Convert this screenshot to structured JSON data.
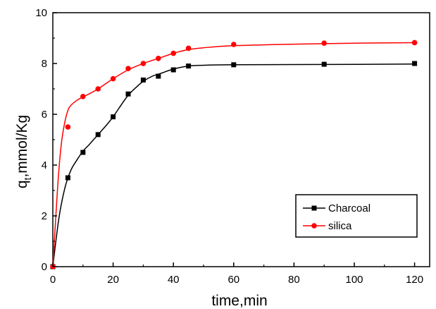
{
  "chart_data": {
    "type": "line",
    "xlabel": "time,min",
    "ylabel": "qt,mmol/Kg",
    "ylabel_main": "q",
    "ylabel_sub": "t",
    "ylabel_rest": ",mmol/Kg",
    "xlim": [
      0,
      125
    ],
    "ylim": [
      0,
      10
    ],
    "x_ticks": [
      "0",
      "20",
      "40",
      "60",
      "80",
      "100",
      "120"
    ],
    "y_ticks": [
      "0",
      "2",
      "4",
      "6",
      "8",
      "10"
    ],
    "grid": false,
    "legend_position": "bottom-right",
    "series": [
      {
        "name": "Charcoal",
        "color": "#000000",
        "marker": "square",
        "x": [
          0,
          5,
          10,
          15,
          20,
          25,
          30,
          35,
          40,
          45,
          60,
          90,
          120
        ],
        "values": [
          0,
          3.5,
          4.5,
          5.2,
          5.9,
          6.8,
          7.35,
          7.5,
          7.75,
          7.9,
          7.95,
          7.97,
          8.0
        ],
        "fit_x": [
          0,
          2,
          4,
          6,
          8,
          10,
          12,
          15,
          18,
          20,
          22,
          25,
          28,
          30,
          33,
          36,
          40,
          45,
          50,
          60,
          90,
          120
        ],
        "fit_y": [
          0,
          1.9,
          3.1,
          3.8,
          4.2,
          4.55,
          4.8,
          5.2,
          5.6,
          5.9,
          6.25,
          6.75,
          7.1,
          7.3,
          7.5,
          7.62,
          7.78,
          7.9,
          7.93,
          7.95,
          7.96,
          7.98
        ]
      },
      {
        "name": "silica",
        "color": "#ff0000",
        "marker": "circle",
        "x": [
          0,
          5,
          10,
          15,
          20,
          25,
          30,
          35,
          40,
          45,
          60,
          90,
          120
        ],
        "values": [
          0,
          5.5,
          6.7,
          7.0,
          7.4,
          7.8,
          8.0,
          8.2,
          8.4,
          8.6,
          8.75,
          8.8,
          8.82
        ],
        "fit_x": [
          0,
          1,
          2,
          3,
          4,
          5,
          6,
          8,
          10,
          12,
          15,
          20,
          25,
          30,
          35,
          40,
          45,
          50,
          60,
          80,
          100,
          120
        ],
        "fit_y": [
          0,
          2.0,
          3.8,
          5.0,
          5.7,
          6.15,
          6.35,
          6.55,
          6.68,
          6.8,
          7.0,
          7.4,
          7.75,
          8.0,
          8.2,
          8.4,
          8.55,
          8.62,
          8.7,
          8.76,
          8.8,
          8.82
        ]
      }
    ]
  }
}
